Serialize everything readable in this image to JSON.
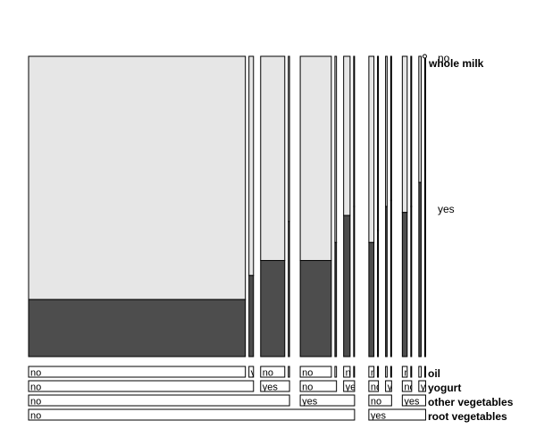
{
  "chart_data": {
    "type": "mosaic",
    "target_variable": "whole milk",
    "target_levels": [
      "no",
      "yes"
    ],
    "colors": {
      "no": "#e6e6e6",
      "yes": "#4d4d4d",
      "outline": "#000000"
    },
    "variables": [
      {
        "name": "oil",
        "levels": [
          "no",
          "yes"
        ]
      },
      {
        "name": "yogurt",
        "levels": [
          "no",
          "yes"
        ]
      },
      {
        "name": "other vegetables",
        "levels": [
          "no",
          "yes"
        ]
      },
      {
        "name": "root vegetables",
        "levels": [
          "no",
          "yes"
        ]
      }
    ],
    "cells": [
      {
        "root vegetables": "no",
        "other vegetables": "no",
        "yogurt": "no",
        "oil": "no",
        "share": 0.5535,
        "whole_milk_yes": 0.19
      },
      {
        "root vegetables": "no",
        "other vegetables": "no",
        "yogurt": "no",
        "oil": "yes",
        "share": 0.0116,
        "whole_milk_yes": 0.27
      },
      {
        "root vegetables": "no",
        "other vegetables": "no",
        "yogurt": "yes",
        "oil": "no",
        "share": 0.0616,
        "whole_milk_yes": 0.32
      },
      {
        "root vegetables": "no",
        "other vegetables": "no",
        "yogurt": "yes",
        "oil": "yes",
        "share": 0.003,
        "whole_milk_yes": 0.45
      },
      {
        "root vegetables": "no",
        "other vegetables": "yes",
        "yogurt": "no",
        "oil": "no",
        "share": 0.0794,
        "whole_milk_yes": 0.32
      },
      {
        "root vegetables": "no",
        "other vegetables": "yes",
        "yogurt": "no",
        "oil": "yes",
        "share": 0.004,
        "whole_milk_yes": 0.38
      },
      {
        "root vegetables": "no",
        "other vegetables": "yes",
        "yogurt": "yes",
        "oil": "no",
        "share": 0.0165,
        "whole_milk_yes": 0.47
      },
      {
        "root vegetables": "no",
        "other vegetables": "yes",
        "yogurt": "yes",
        "oil": "yes",
        "share": 0.0016,
        "whole_milk_yes": 0.5
      },
      {
        "root vegetables": "yes",
        "other vegetables": "no",
        "yogurt": "no",
        "oil": "no",
        "share": 0.013,
        "whole_milk_yes": 0.38
      },
      {
        "root vegetables": "yes",
        "other vegetables": "no",
        "yogurt": "no",
        "oil": "yes",
        "share": 0.0012,
        "whole_milk_yes": 0.42
      },
      {
        "root vegetables": "yes",
        "other vegetables": "no",
        "yogurt": "yes",
        "oil": "no",
        "share": 0.004,
        "whole_milk_yes": 0.5
      },
      {
        "root vegetables": "yes",
        "other vegetables": "no",
        "yogurt": "yes",
        "oil": "yes",
        "share": 0.001,
        "whole_milk_yes": 0.52
      },
      {
        "root vegetables": "yes",
        "other vegetables": "yes",
        "yogurt": "no",
        "oil": "no",
        "share": 0.0125,
        "whole_milk_yes": 0.48
      },
      {
        "root vegetables": "yes",
        "other vegetables": "yes",
        "yogurt": "no",
        "oil": "yes",
        "share": 0.0012,
        "whole_milk_yes": 0.5
      },
      {
        "root vegetables": "yes",
        "other vegetables": "yes",
        "yogurt": "yes",
        "oil": "no",
        "share": 0.006,
        "whole_milk_yes": 0.58
      },
      {
        "root vegetables": "yes",
        "other vegetables": "yes",
        "yogurt": "yes",
        "oil": "yes",
        "share": 0.0008,
        "whole_milk_yes": 0.62
      }
    ]
  }
}
